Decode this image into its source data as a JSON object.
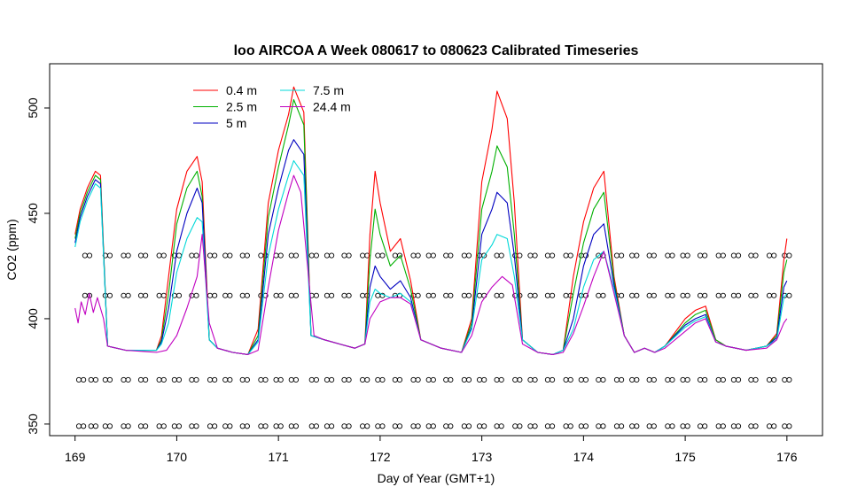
{
  "chart_data": {
    "type": "line",
    "title": "loo AIRCOA A  Week 080617 to 080623  Calibrated Timeseries",
    "xlabel": "Day of Year (GMT+1)",
    "ylabel": "CO2 (ppm)",
    "xlim": [
      168.75,
      176.35
    ],
    "ylim": [
      344.5,
      521
    ],
    "x_ticks": [
      169,
      170,
      171,
      172,
      173,
      174,
      175,
      176
    ],
    "y_ticks": [
      350,
      400,
      450,
      500
    ],
    "legend_position": "top-left",
    "series": [
      {
        "name": "0.4 m",
        "color": "#ff0000",
        "x": [
          169.0,
          169.05,
          169.12,
          169.2,
          169.25,
          169.32,
          169.5,
          169.8,
          169.85,
          169.92,
          170.0,
          170.1,
          170.2,
          170.25,
          170.32,
          170.4,
          170.55,
          170.7,
          170.8,
          170.9,
          171.0,
          171.1,
          171.15,
          171.25,
          171.32,
          171.45,
          171.6,
          171.75,
          171.85,
          171.9,
          171.95,
          172.0,
          172.1,
          172.2,
          172.3,
          172.4,
          172.6,
          172.8,
          172.9,
          173.0,
          173.1,
          173.15,
          173.25,
          173.32,
          173.4,
          173.55,
          173.7,
          173.8,
          173.9,
          174.0,
          174.1,
          174.2,
          174.3,
          174.4,
          174.5,
          174.6,
          174.7,
          174.8,
          175.0,
          175.1,
          175.2,
          175.3,
          175.4,
          175.6,
          175.8,
          175.9,
          175.97,
          176.0
        ],
        "y": [
          440,
          452,
          462,
          470,
          468,
          387,
          385,
          385,
          392,
          420,
          452,
          470,
          477,
          465,
          390,
          386,
          384,
          383,
          395,
          455,
          480,
          497,
          510,
          498,
          392,
          390,
          388,
          386,
          388,
          440,
          470,
          455,
          432,
          438,
          418,
          390,
          386,
          384,
          400,
          465,
          490,
          508,
          495,
          455,
          390,
          384,
          383,
          385,
          420,
          446,
          462,
          470,
          420,
          392,
          384,
          386,
          384,
          387,
          400,
          404,
          406,
          390,
          387,
          385,
          387,
          393,
          428,
          438
        ]
      },
      {
        "name": "2.5 m",
        "color": "#00b000",
        "x": [
          169.0,
          169.05,
          169.12,
          169.2,
          169.25,
          169.32,
          169.5,
          169.8,
          169.85,
          169.92,
          170.0,
          170.1,
          170.2,
          170.25,
          170.32,
          170.4,
          170.55,
          170.7,
          170.8,
          170.9,
          171.0,
          171.1,
          171.15,
          171.25,
          171.32,
          171.45,
          171.6,
          171.75,
          171.85,
          171.9,
          171.95,
          172.0,
          172.1,
          172.2,
          172.3,
          172.4,
          172.6,
          172.8,
          172.9,
          173.0,
          173.1,
          173.15,
          173.25,
          173.32,
          173.4,
          173.55,
          173.7,
          173.8,
          173.9,
          174.0,
          174.1,
          174.2,
          174.3,
          174.4,
          174.5,
          174.6,
          174.7,
          174.8,
          175.0,
          175.1,
          175.2,
          175.3,
          175.4,
          175.6,
          175.8,
          175.9,
          175.97,
          176.0
        ],
        "y": [
          438,
          450,
          460,
          468,
          466,
          387,
          385,
          385,
          390,
          412,
          445,
          462,
          470,
          458,
          390,
          386,
          384,
          383,
          392,
          448,
          472,
          492,
          504,
          492,
          392,
          390,
          388,
          386,
          388,
          428,
          452,
          440,
          425,
          430,
          414,
          390,
          386,
          384,
          398,
          452,
          470,
          482,
          472,
          440,
          390,
          384,
          383,
          385,
          412,
          436,
          452,
          460,
          418,
          392,
          384,
          386,
          384,
          387,
          398,
          402,
          404,
          390,
          387,
          385,
          387,
          392,
          422,
          428
        ]
      },
      {
        "name": "5 m",
        "color": "#0000c0",
        "x": [
          169.0,
          169.05,
          169.12,
          169.2,
          169.25,
          169.32,
          169.5,
          169.8,
          169.85,
          169.92,
          170.0,
          170.1,
          170.2,
          170.25,
          170.32,
          170.4,
          170.55,
          170.7,
          170.8,
          170.9,
          171.0,
          171.1,
          171.15,
          171.25,
          171.32,
          171.45,
          171.6,
          171.75,
          171.85,
          171.9,
          171.95,
          172.0,
          172.1,
          172.2,
          172.3,
          172.4,
          172.6,
          172.8,
          172.9,
          173.0,
          173.1,
          173.15,
          173.25,
          173.32,
          173.4,
          173.55,
          173.7,
          173.8,
          173.9,
          174.0,
          174.1,
          174.2,
          174.3,
          174.4,
          174.5,
          174.6,
          174.7,
          174.8,
          175.0,
          175.1,
          175.2,
          175.3,
          175.4,
          175.6,
          175.8,
          175.9,
          175.97,
          176.0
        ],
        "y": [
          436,
          448,
          458,
          466,
          464,
          387,
          385,
          385,
          389,
          405,
          432,
          450,
          462,
          455,
          390,
          386,
          384,
          383,
          390,
          440,
          462,
          480,
          485,
          478,
          392,
          390,
          388,
          386,
          388,
          415,
          425,
          420,
          414,
          418,
          410,
          390,
          386,
          384,
          396,
          440,
          452,
          460,
          455,
          430,
          390,
          384,
          383,
          385,
          400,
          425,
          440,
          445,
          416,
          392,
          384,
          386,
          384,
          387,
          397,
          400,
          402,
          389,
          387,
          385,
          387,
          391,
          415,
          418
        ]
      },
      {
        "name": "7.5 m",
        "color": "#00d8d8",
        "x": [
          169.0,
          169.05,
          169.12,
          169.2,
          169.25,
          169.32,
          169.5,
          169.8,
          169.85,
          169.92,
          170.0,
          170.1,
          170.2,
          170.25,
          170.32,
          170.4,
          170.55,
          170.7,
          170.8,
          170.9,
          171.0,
          171.1,
          171.15,
          171.25,
          171.32,
          171.45,
          171.6,
          171.75,
          171.85,
          171.9,
          171.95,
          172.0,
          172.1,
          172.2,
          172.3,
          172.4,
          172.6,
          172.8,
          172.9,
          173.0,
          173.1,
          173.15,
          173.25,
          173.32,
          173.4,
          173.55,
          173.7,
          173.8,
          173.9,
          174.0,
          174.1,
          174.2,
          174.3,
          174.4,
          174.5,
          174.6,
          174.7,
          174.8,
          175.0,
          175.1,
          175.2,
          175.3,
          175.4,
          175.6,
          175.8,
          175.9,
          175.97,
          176.0
        ],
        "y": [
          434,
          446,
          456,
          464,
          462,
          387,
          385,
          385,
          388,
          398,
          422,
          438,
          448,
          446,
          390,
          386,
          384,
          383,
          389,
          430,
          452,
          468,
          475,
          468,
          392,
          390,
          388,
          386,
          388,
          408,
          414,
          412,
          410,
          412,
          408,
          390,
          386,
          384,
          395,
          428,
          435,
          440,
          438,
          420,
          390,
          384,
          383,
          385,
          395,
          415,
          428,
          432,
          414,
          392,
          384,
          386,
          384,
          387,
          396,
          399,
          401,
          389,
          387,
          385,
          387,
          390,
          410,
          412
        ]
      },
      {
        "name": "24.4 m",
        "color": "#c000c0",
        "x": [
          169.0,
          169.03,
          169.06,
          169.1,
          169.14,
          169.18,
          169.22,
          169.28,
          169.32,
          169.5,
          169.8,
          169.9,
          170.0,
          170.1,
          170.2,
          170.25,
          170.32,
          170.4,
          170.55,
          170.7,
          170.8,
          170.9,
          171.0,
          171.1,
          171.15,
          171.22,
          171.28,
          171.35,
          171.45,
          171.6,
          171.75,
          171.85,
          171.9,
          172.0,
          172.1,
          172.2,
          172.3,
          172.4,
          172.6,
          172.8,
          172.9,
          173.0,
          173.1,
          173.2,
          173.3,
          173.4,
          173.55,
          173.7,
          173.8,
          173.9,
          174.0,
          174.1,
          174.2,
          174.3,
          174.4,
          174.5,
          174.6,
          174.7,
          174.8,
          175.0,
          175.1,
          175.2,
          175.3,
          175.4,
          175.6,
          175.8,
          175.9,
          175.97,
          176.0
        ],
        "y": [
          405,
          398,
          408,
          402,
          412,
          403,
          410,
          400,
          387,
          385,
          384,
          385,
          392,
          405,
          420,
          440,
          398,
          386,
          384,
          383,
          385,
          415,
          442,
          460,
          468,
          460,
          428,
          392,
          390,
          388,
          386,
          388,
          400,
          408,
          410,
          410,
          407,
          390,
          386,
          384,
          392,
          408,
          415,
          420,
          416,
          388,
          384,
          383,
          384,
          393,
          406,
          420,
          432,
          412,
          392,
          384,
          386,
          384,
          386,
          394,
          398,
          400,
          389,
          387,
          385,
          386,
          390,
          398,
          400
        ]
      }
    ],
    "markers": {
      "shape": "open-circle",
      "rows": [
        {
          "y": 430,
          "x": [
            169.12,
            169.32,
            169.5,
            169.67,
            169.85,
            170.0,
            170.17,
            170.35,
            170.5,
            170.67,
            170.85,
            171.0,
            171.15,
            171.35,
            171.5,
            171.67,
            171.85,
            172.0,
            172.17,
            172.35,
            172.5,
            172.67,
            172.85,
            173.0,
            173.17,
            173.35,
            173.5,
            173.67,
            173.85,
            174.0,
            174.17,
            174.35,
            174.5,
            174.67,
            174.85,
            175.0,
            175.17,
            175.35,
            175.5,
            175.67,
            175.85,
            176.0
          ]
        },
        {
          "y": 411,
          "x": [
            169.12,
            169.32,
            169.5,
            169.67,
            169.85,
            170.0,
            170.17,
            170.35,
            170.5,
            170.67,
            170.85,
            171.0,
            171.15,
            171.35,
            171.5,
            171.67,
            171.85,
            172.0,
            172.17,
            172.35,
            172.5,
            172.67,
            172.85,
            173.0,
            173.17,
            173.35,
            173.5,
            173.67,
            173.85,
            174.0,
            174.17,
            174.35,
            174.5,
            174.67,
            174.85,
            175.0,
            175.17,
            175.35,
            175.5,
            175.67,
            175.85,
            176.0
          ]
        },
        {
          "y": 371,
          "x": [
            169.06,
            169.18,
            169.32,
            169.5,
            169.67,
            169.85,
            170.0,
            170.17,
            170.35,
            170.5,
            170.67,
            170.85,
            171.0,
            171.15,
            171.35,
            171.5,
            171.67,
            171.85,
            172.0,
            172.17,
            172.35,
            172.5,
            172.67,
            172.85,
            173.0,
            173.17,
            173.35,
            173.5,
            173.67,
            173.85,
            174.0,
            174.17,
            174.35,
            174.5,
            174.67,
            174.85,
            175.0,
            175.17,
            175.35,
            175.5,
            175.67,
            175.85,
            176.0
          ]
        },
        {
          "y": 349,
          "x": [
            169.06,
            169.18,
            169.32,
            169.5,
            169.67,
            169.85,
            170.0,
            170.17,
            170.35,
            170.5,
            170.67,
            170.85,
            171.0,
            171.15,
            171.35,
            171.5,
            171.67,
            171.85,
            172.0,
            172.17,
            172.35,
            172.5,
            172.67,
            172.85,
            173.0,
            173.17,
            173.35,
            173.5,
            173.67,
            173.85,
            174.0,
            174.17,
            174.35,
            174.5,
            174.67,
            174.85,
            175.0,
            175.17,
            175.35,
            175.5,
            175.67,
            175.85,
            176.0
          ]
        }
      ]
    }
  }
}
